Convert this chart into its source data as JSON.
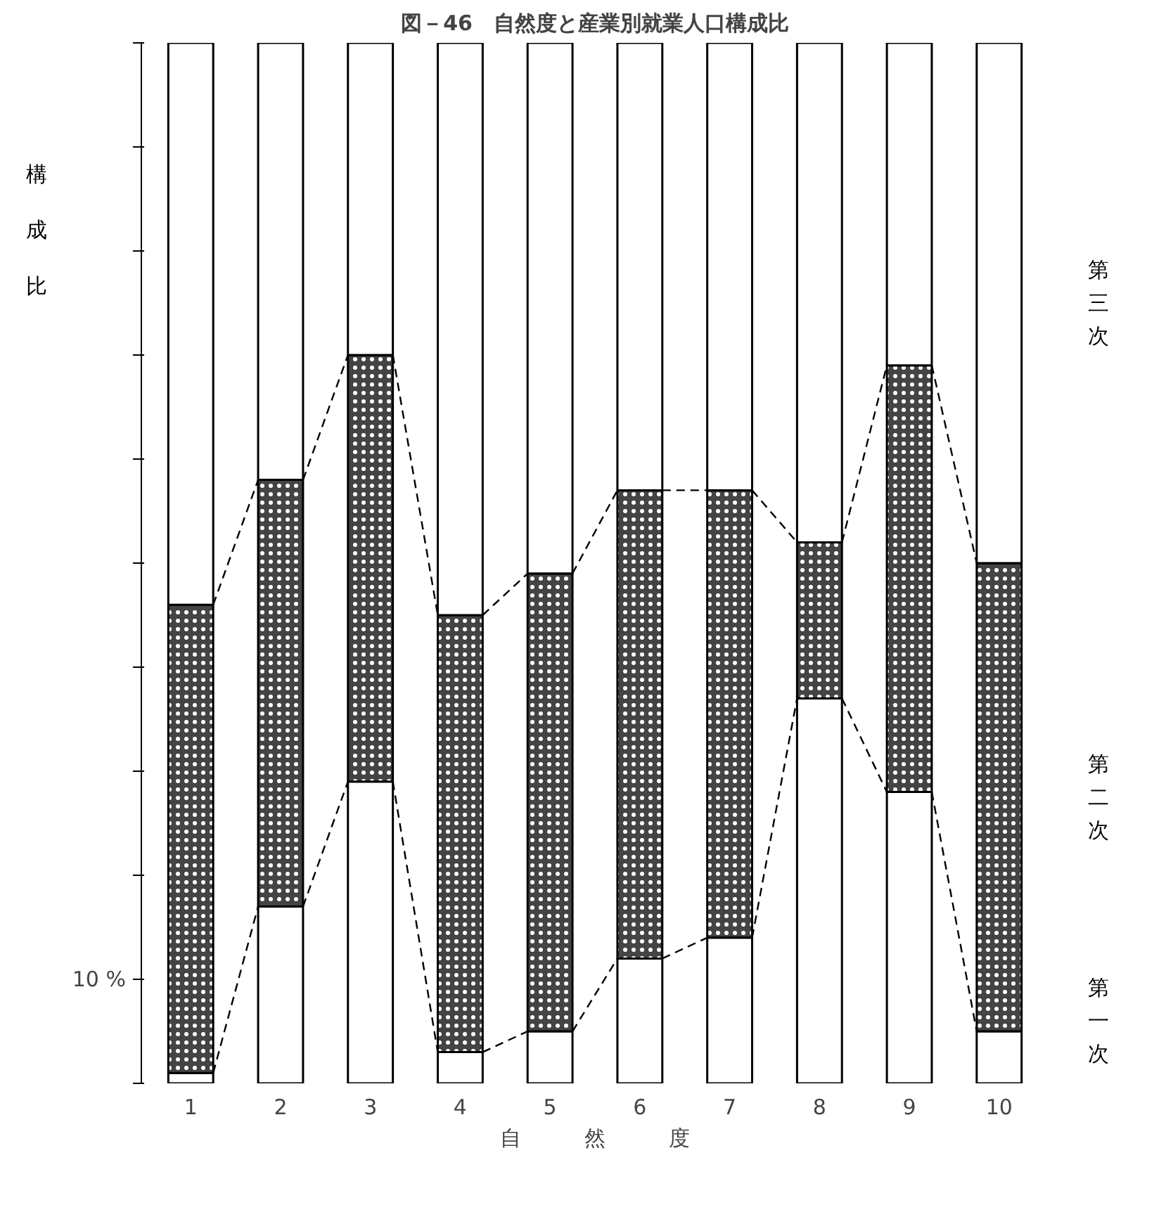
{
  "chart_data": {
    "type": "bar",
    "stacked": true,
    "title": "図－46　自然度と産業別就業人口構成比",
    "xlabel": "自　　　然　　　度",
    "ylabel": "構成比",
    "categories": [
      "1",
      "2",
      "3",
      "4",
      "5",
      "6",
      "7",
      "8",
      "9",
      "10"
    ],
    "series": [
      {
        "name": "第一次",
        "color": "#ffffff",
        "values": [
          1,
          17,
          29,
          3,
          5,
          12,
          14,
          37,
          28,
          5
        ]
      },
      {
        "name": "第二次",
        "color": "#444444",
        "values": [
          45,
          41,
          41,
          42,
          44,
          45,
          43,
          15,
          41,
          45
        ]
      },
      {
        "name": "第三次",
        "color": "#ffffff",
        "values": [
          54,
          42,
          30,
          55,
          51,
          43,
          43,
          48,
          31,
          50
        ]
      }
    ],
    "ylim": [
      0,
      100
    ],
    "yticks": [
      {
        "value": 0,
        "label": null
      },
      {
        "value": 10,
        "label": "10 %"
      },
      {
        "value": 20,
        "label": null
      },
      {
        "value": 30,
        "label": null
      },
      {
        "value": 40,
        "label": null
      },
      {
        "value": 50,
        "label": null
      },
      {
        "value": 60,
        "label": null
      },
      {
        "value": 70,
        "label": null
      },
      {
        "value": 80,
        "label": null
      },
      {
        "value": 90,
        "label": null
      },
      {
        "value": 100,
        "label": null
      }
    ],
    "grid": false,
    "line_style": "dashed"
  }
}
